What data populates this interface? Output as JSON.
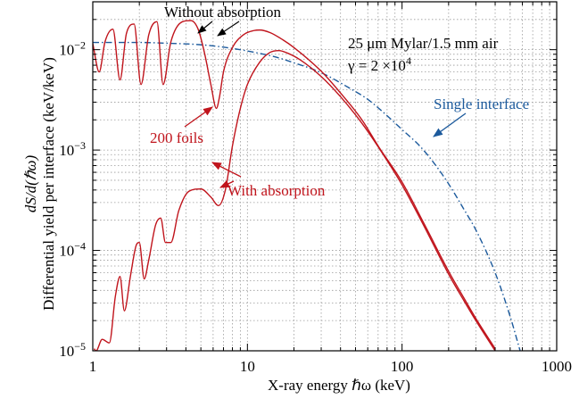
{
  "colors": {
    "red": "#c0141c",
    "blue": "#1c5a9c",
    "grid": "#9a9a9a",
    "axis": "#000000"
  },
  "chart_data": {
    "type": "line",
    "xlabel_html": "X-ray energy ℏω (keV)",
    "xlabel": "X-ray energy ℏω   (keV)",
    "ylabel_line1": "Differential yield per interface (keV/keV)",
    "ylabel_line2": "dS/d(ℏω)",
    "x_scale": "log",
    "y_scale": "log",
    "xlim": [
      1,
      1000
    ],
    "ylim": [
      1e-05,
      0.03
    ],
    "grid": true,
    "x_ticks": [
      {
        "value": 1,
        "label": "1"
      },
      {
        "value": 10,
        "label": "10"
      },
      {
        "value": 100,
        "label": "100"
      },
      {
        "value": 1000,
        "label": "1000"
      }
    ],
    "y_ticks": [
      {
        "value": 1e-05,
        "base": "10",
        "exp": "−5"
      },
      {
        "value": 0.0001,
        "base": "10",
        "exp": "−4"
      },
      {
        "value": 0.001,
        "base": "10",
        "exp": "−3"
      },
      {
        "value": 0.01,
        "base": "10",
        "exp": "−2"
      }
    ],
    "annotations": {
      "params_line1": "25 μm Mylar/1.5 mm air",
      "params_line2_prefix": "γ = 2 ×10",
      "params_line2_exp": "4",
      "without_absorption": "Without absorption",
      "with_absorption": "With absorption",
      "foils": "200 foils",
      "single_interface": "Single interface"
    },
    "series": [
      {
        "style": "dashdot",
        "color": "#1c5a9c",
        "points": [
          [
            1.0,
            0.0118
          ],
          [
            2.0,
            0.0118
          ],
          [
            3.0,
            0.0116
          ],
          [
            5.0,
            0.0112
          ],
          [
            7.0,
            0.0106
          ],
          [
            10.0,
            0.0097
          ],
          [
            15.0,
            0.0085
          ],
          [
            20.0,
            0.0074
          ],
          [
            30.0,
            0.0059
          ],
          [
            45.0,
            0.0042
          ],
          [
            60.0,
            0.0032
          ],
          [
            80.0,
            0.0022
          ],
          [
            100.0,
            0.0016
          ],
          [
            130.0,
            0.0011
          ],
          [
            160.0,
            0.00075
          ],
          [
            200.0,
            0.00046
          ],
          [
            250.0,
            0.00026
          ],
          [
            300.0,
            0.00016
          ],
          [
            400.0,
            6e-05
          ],
          [
            500.0,
            2.2e-05
          ],
          [
            580.0,
            1e-05
          ]
        ]
      },
      {
        "style": "solid",
        "color": "#c0141c",
        "points": [
          [
            1.0,
            0.0115
          ],
          [
            1.1,
            0.006
          ],
          [
            1.2,
            0.012
          ],
          [
            1.35,
            0.016
          ],
          [
            1.5,
            0.005
          ],
          [
            1.65,
            0.0145
          ],
          [
            1.85,
            0.018
          ],
          [
            2.05,
            0.0045
          ],
          [
            2.3,
            0.014
          ],
          [
            2.6,
            0.019
          ],
          [
            2.85,
            0.0045
          ],
          [
            3.2,
            0.012
          ],
          [
            3.8,
            0.019
          ],
          [
            4.3,
            0.0195
          ],
          [
            4.8,
            0.016
          ],
          [
            5.3,
            0.009
          ],
          [
            5.8,
            0.0045
          ],
          [
            6.3,
            0.0026
          ],
          [
            6.6,
            0.0034
          ],
          [
            7.0,
            0.006
          ],
          [
            8.0,
            0.0105
          ],
          [
            9.5,
            0.0142
          ],
          [
            11.0,
            0.0155
          ],
          [
            12.0,
            0.0157
          ],
          [
            14.0,
            0.0148
          ],
          [
            17.0,
            0.0125
          ],
          [
            20.0,
            0.0105
          ],
          [
            30.0,
            0.0061
          ],
          [
            40.0,
            0.0037
          ],
          [
            55.0,
            0.002
          ],
          [
            70.0,
            0.0011
          ],
          [
            100.0,
            0.00048
          ],
          [
            140.0,
            0.00018
          ],
          [
            200.0,
            6.2e-05
          ],
          [
            250.0,
            3.4e-05
          ],
          [
            300.0,
            2.1e-05
          ],
          [
            400.0,
            1.05e-05
          ]
        ]
      },
      {
        "style": "solid",
        "color": "#c0141c",
        "points": [
          [
            1.02,
            1.05e-05
          ],
          [
            1.05,
            1e-05
          ],
          [
            1.15,
            1.3e-05
          ],
          [
            1.28,
            1.2e-05
          ],
          [
            1.4,
            3.5e-05
          ],
          [
            1.5,
            5.5e-05
          ],
          [
            1.6,
            2.5e-05
          ],
          [
            1.75,
            5.5e-05
          ],
          [
            1.9,
            0.00011
          ],
          [
            2.0,
            0.00012
          ],
          [
            2.15,
            5.2e-05
          ],
          [
            2.3,
            8e-05
          ],
          [
            2.55,
            0.00018
          ],
          [
            2.75,
            0.00021
          ],
          [
            2.95,
            0.00012
          ],
          [
            3.2,
            0.00012
          ],
          [
            3.6,
            0.00025
          ],
          [
            4.2,
            0.00039
          ],
          [
            5.0,
            0.00041
          ],
          [
            5.8,
            0.00034
          ],
          [
            6.5,
            0.00028
          ],
          [
            7.2,
            0.0004
          ],
          [
            8.0,
            0.0011
          ],
          [
            9.0,
            0.0026
          ],
          [
            10.0,
            0.0045
          ],
          [
            12.0,
            0.0075
          ],
          [
            14.0,
            0.0094
          ],
          [
            16.0,
            0.0098
          ],
          [
            18.0,
            0.0093
          ],
          [
            22.0,
            0.0079
          ],
          [
            30.0,
            0.0054
          ],
          [
            40.0,
            0.0034
          ],
          [
            55.0,
            0.00185
          ],
          [
            70.0,
            0.00108
          ],
          [
            100.0,
            0.00045
          ],
          [
            140.0,
            0.00017
          ],
          [
            200.0,
            5.8e-05
          ],
          [
            250.0,
            3.2e-05
          ],
          [
            300.0,
            2e-05
          ],
          [
            400.0,
            1e-05
          ]
        ]
      }
    ]
  }
}
